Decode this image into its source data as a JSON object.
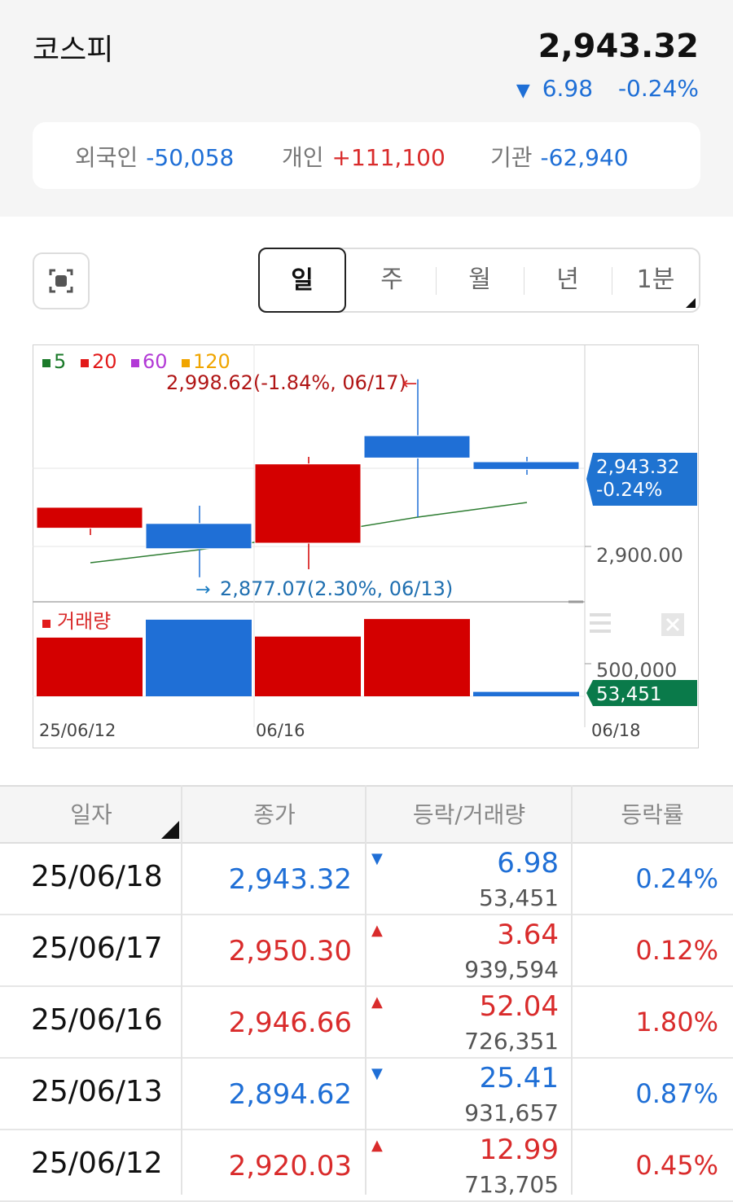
{
  "index": {
    "name": "코스피",
    "price": "2,943.32",
    "change_arrow": "▼",
    "change": "6.98",
    "change_pct": "-0.24%"
  },
  "investors": [
    {
      "label": "외국인",
      "value": "-50,058",
      "color": "blue"
    },
    {
      "label": "개인",
      "value": "+111,100",
      "color": "red"
    },
    {
      "label": "기관",
      "value": "-62,940",
      "color": "blue"
    }
  ],
  "periods": [
    "일",
    "주",
    "월",
    "년",
    "1분"
  ],
  "selected_period": "일",
  "icons": {
    "capture": "capture-icon",
    "settings": "menu-icon",
    "close": "close-icon"
  },
  "colors": {
    "up": "#d40000",
    "down": "#1f6fd6",
    "ma20": "#2e7d32",
    "volume_badge": "#0a7a4a"
  },
  "chart_data": [
    {
      "type": "candlestick",
      "legend": [
        {
          "label": "5",
          "color": "#1b7a2a"
        },
        {
          "label": "20",
          "color": "#e21a1a"
        },
        {
          "label": "60",
          "color": "#b23ad6"
        },
        {
          "label": "120",
          "color": "#f0a500"
        }
      ],
      "candles": [
        {
          "open": 2907.2,
          "high": 2919.5,
          "low": 2903.0,
          "close": 2920.03
        },
        {
          "open": 2910.1,
          "high": 2921.0,
          "low": 2877.07,
          "close": 2894.62
        },
        {
          "open": 2898.0,
          "high": 2951.0,
          "low": 2882.0,
          "close": 2946.66
        },
        {
          "open": 2964.0,
          "high": 2998.62,
          "low": 2914.0,
          "close": 2950.3
        },
        {
          "open": 2948.0,
          "high": 2951.0,
          "low": 2940.0,
          "close": 2943.32
        }
      ],
      "ma_line": [
        2886.0,
        2894.0,
        2903.0,
        2914.0,
        2923.0
      ],
      "high_label": "2,998.62(-1.84%, 06/17)",
      "low_label": "2,877.07(2.30%, 06/13)",
      "current_price_label": "2,943.32",
      "current_change_label": "-0.24%",
      "y_tick": "2,900.00",
      "ylim": [
        2870,
        3010
      ]
    },
    {
      "type": "bar",
      "legend": "거래량",
      "values": [
        713705,
        931657,
        726351,
        939594,
        53451
      ],
      "up": [
        true,
        false,
        true,
        true,
        false
      ],
      "y_tick": "500,000",
      "current_label": "53,451",
      "ylim": [
        0,
        1050000
      ]
    }
  ],
  "x_labels": [
    "25/06/12",
    "06/16",
    "06/18"
  ],
  "table": {
    "headers": [
      "일자",
      "종가",
      "등락/거래량",
      "등락률"
    ],
    "rows": [
      {
        "date": "25/06/18",
        "close": "2,943.32",
        "dir": "down",
        "arrow": "▼",
        "diff": "6.98",
        "volume": "53,451",
        "rate": "0.24%"
      },
      {
        "date": "25/06/17",
        "close": "2,950.30",
        "dir": "up",
        "arrow": "▲",
        "diff": "3.64",
        "volume": "939,594",
        "rate": "0.12%"
      },
      {
        "date": "25/06/16",
        "close": "2,946.66",
        "dir": "up",
        "arrow": "▲",
        "diff": "52.04",
        "volume": "726,351",
        "rate": "1.80%"
      },
      {
        "date": "25/06/13",
        "close": "2,894.62",
        "dir": "down",
        "arrow": "▼",
        "diff": "25.41",
        "volume": "931,657",
        "rate": "0.87%"
      },
      {
        "date": "25/06/12",
        "close": "2,920.03",
        "dir": "up",
        "arrow": "▲",
        "diff": "12.99",
        "volume": "713,705",
        "rate": "0.45%"
      }
    ]
  }
}
